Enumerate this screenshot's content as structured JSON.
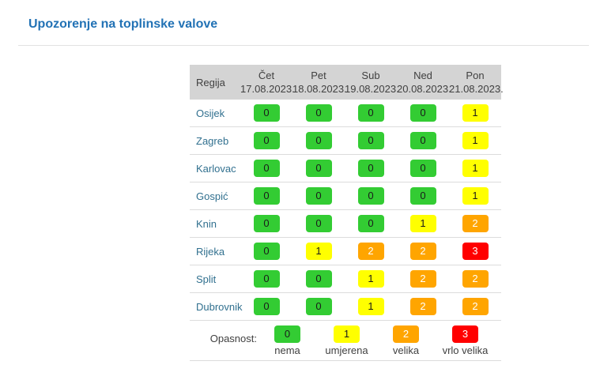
{
  "page": {
    "title": "Upozorenje na toplinske valove"
  },
  "colors": {
    "level0": "#33cc33",
    "level1": "#ffff00",
    "level2": "#ffa500",
    "level3": "#ff0000",
    "header_bg": "#d4d4d4",
    "title_blue": "#2272b5",
    "region_link": "#31708f"
  },
  "table": {
    "region_header": "Regija",
    "columns": [
      {
        "day": "Čet",
        "date": "17.08.2023."
      },
      {
        "day": "Pet",
        "date": "18.08.2023."
      },
      {
        "day": "Sub",
        "date": "19.08.2023."
      },
      {
        "day": "Ned",
        "date": "20.08.2023."
      },
      {
        "day": "Pon",
        "date": "21.08.2023."
      }
    ],
    "rows": [
      {
        "region": "Osijek",
        "values": [
          0,
          0,
          0,
          0,
          1
        ]
      },
      {
        "region": "Zagreb",
        "values": [
          0,
          0,
          0,
          0,
          1
        ]
      },
      {
        "region": "Karlovac",
        "values": [
          0,
          0,
          0,
          0,
          1
        ]
      },
      {
        "region": "Gospić",
        "values": [
          0,
          0,
          0,
          0,
          1
        ]
      },
      {
        "region": "Knin",
        "values": [
          0,
          0,
          0,
          1,
          2
        ]
      },
      {
        "region": "Rijeka",
        "values": [
          0,
          1,
          2,
          2,
          3
        ]
      },
      {
        "region": "Split",
        "values": [
          0,
          0,
          1,
          2,
          2
        ]
      },
      {
        "region": "Dubrovnik",
        "values": [
          0,
          0,
          1,
          2,
          2
        ]
      }
    ]
  },
  "legend": {
    "label": "Opasnost:",
    "items": [
      {
        "value": 0,
        "label": "nema"
      },
      {
        "value": 1,
        "label": "umjerena"
      },
      {
        "value": 2,
        "label": "velika"
      },
      {
        "value": 3,
        "label": "vrlo velika"
      }
    ]
  },
  "chart_data": {
    "type": "heatmap",
    "title": "Upozorenje na toplinske valove",
    "x": [
      "Čet 17.08.2023.",
      "Pet 18.08.2023.",
      "Sub 19.08.2023.",
      "Ned 20.08.2023.",
      "Pon 21.08.2023."
    ],
    "y": [
      "Osijek",
      "Zagreb",
      "Karlovac",
      "Gospić",
      "Knin",
      "Rijeka",
      "Split",
      "Dubrovnik"
    ],
    "values": [
      [
        0,
        0,
        0,
        0,
        1
      ],
      [
        0,
        0,
        0,
        0,
        1
      ],
      [
        0,
        0,
        0,
        0,
        1
      ],
      [
        0,
        0,
        0,
        0,
        1
      ],
      [
        0,
        0,
        0,
        1,
        2
      ],
      [
        0,
        1,
        2,
        2,
        3
      ],
      [
        0,
        0,
        1,
        2,
        2
      ],
      [
        0,
        0,
        1,
        2,
        2
      ]
    ],
    "scale": [
      {
        "value": 0,
        "label": "nema",
        "color": "#33cc33"
      },
      {
        "value": 1,
        "label": "umjerena",
        "color": "#ffff00"
      },
      {
        "value": 2,
        "label": "velika",
        "color": "#ffa500"
      },
      {
        "value": 3,
        "label": "vrlo velika",
        "color": "#ff0000"
      }
    ]
  }
}
